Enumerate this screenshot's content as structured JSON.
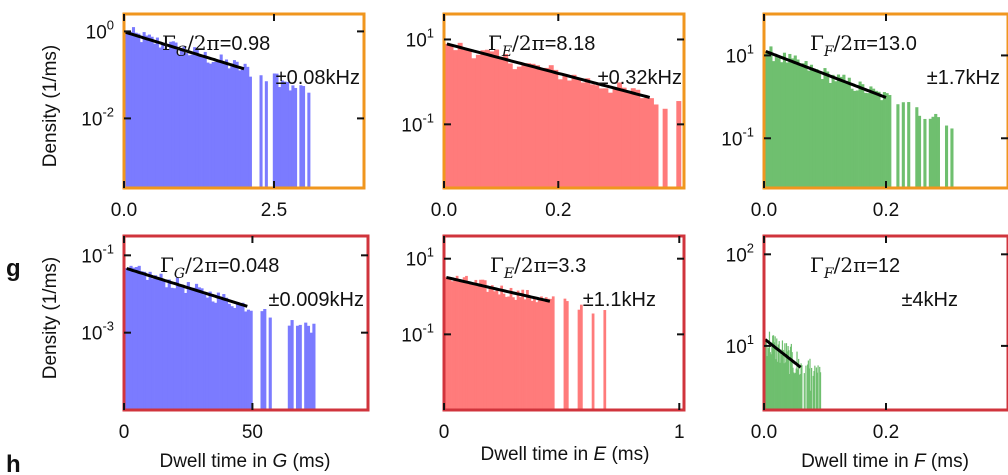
{
  "panel_letters": [
    "g",
    "h"
  ],
  "y_axis_label": "Density (1/ms)",
  "x_axis_labels": [
    "Dwell time in G (ms)",
    "Dwell time in E (ms)",
    "Dwell time in F (ms)"
  ],
  "colors": {
    "G": "#7b7bff",
    "E": "#ff7b7b",
    "F": "#6fbf6f",
    "row1_frame": "#f0961e",
    "row2_frame": "#d0343c",
    "fit": "#000000"
  },
  "chart_data": [
    {
      "id": "row1-G",
      "type": "histogram",
      "state": "G",
      "frame": "orange",
      "fit_label": "ΓG/2π=0.98",
      "fit_error": "±0.08kHz",
      "rate_kHz": 0.98,
      "rate_err_kHz": 0.08,
      "xlim": [
        0,
        4
      ],
      "ylim_log10": [
        -3.6,
        0.4
      ],
      "xticks": [
        0.0,
        2.5
      ],
      "xtick_labels": [
        "0.0",
        "2.5"
      ],
      "yticks_log10": [
        0,
        -2
      ],
      "ytick_labels": [
        "10^0",
        "10^-2"
      ],
      "fit_x_range": [
        0.02,
        2.0
      ]
    },
    {
      "id": "row1-E",
      "type": "histogram",
      "state": "E",
      "frame": "orange",
      "fit_label": "ΓE/2π=8.18",
      "fit_error": "±0.32kHz",
      "rate_kHz": 8.18,
      "rate_err_kHz": 0.32,
      "xlim": [
        0,
        0.42
      ],
      "ylim_log10": [
        -2.5,
        1.6
      ],
      "xticks": [
        0.0,
        0.2
      ],
      "xtick_labels": [
        "0.0",
        "0.2"
      ],
      "yticks_log10": [
        1,
        -1
      ],
      "ytick_labels": [
        "10^1",
        "10^-1"
      ],
      "fit_x_range": [
        0.005,
        0.36
      ]
    },
    {
      "id": "row1-F",
      "type": "histogram",
      "state": "F",
      "frame": "orange",
      "fit_label": "ΓF/2π=13.0",
      "fit_error": "±1.7kHz",
      "rate_kHz": 13.0,
      "rate_err_kHz": 1.7,
      "xlim": [
        0,
        0.4
      ],
      "ylim_log10": [
        -2.2,
        2.0
      ],
      "xticks": [
        0.0,
        0.2
      ],
      "xtick_labels": [
        "0.0",
        "0.2"
      ],
      "yticks_log10": [
        1,
        -1
      ],
      "ytick_labels": [
        "10^1",
        "10^-1"
      ],
      "fit_x_range": [
        0.003,
        0.2
      ]
    },
    {
      "id": "row2-G",
      "type": "histogram",
      "state": "G",
      "frame": "red",
      "fit_label": "ΓG/2π=0.048",
      "fit_error": "±0.009kHz",
      "rate_kHz": 0.048,
      "rate_err_kHz": 0.009,
      "xlim": [
        0,
        95
      ],
      "ylim_log10": [
        -5.0,
        -0.5
      ],
      "xticks": [
        0,
        50
      ],
      "xtick_labels": [
        "0",
        "50"
      ],
      "yticks_log10": [
        -1,
        -3
      ],
      "ytick_labels": [
        "10^-1",
        "10^-3"
      ],
      "fit_x_range": [
        1,
        48
      ]
    },
    {
      "id": "row2-E",
      "type": "histogram",
      "state": "E",
      "frame": "red",
      "fit_label": "ΓE/2π=3.3",
      "fit_error": "±1.1kHz",
      "rate_kHz": 3.3,
      "rate_err_kHz": 1.1,
      "xlim": [
        0,
        1.02
      ],
      "ylim_log10": [
        -3.0,
        1.6
      ],
      "xticks": [
        0,
        1
      ],
      "xtick_labels": [
        "0",
        "1"
      ],
      "yticks_log10": [
        1,
        -1
      ],
      "ytick_labels": [
        "10^1",
        "10^-1"
      ],
      "fit_x_range": [
        0.01,
        0.45
      ]
    },
    {
      "id": "row2-F",
      "type": "histogram",
      "state": "F",
      "frame": "red",
      "fit_label": "ΓF/2π=12",
      "fit_error": "±4kHz",
      "rate_kHz": 12,
      "rate_err_kHz": 4,
      "xlim": [
        0,
        0.4
      ],
      "ylim_log10": [
        0.3,
        2.2
      ],
      "xticks": [
        0.0,
        0.2
      ],
      "xtick_labels": [
        "0.0",
        "0.2"
      ],
      "yticks_log10": [
        2,
        1
      ],
      "ytick_labels": [
        "10^2",
        "10^1"
      ],
      "fit_x_range": [
        0.002,
        0.06
      ]
    }
  ]
}
